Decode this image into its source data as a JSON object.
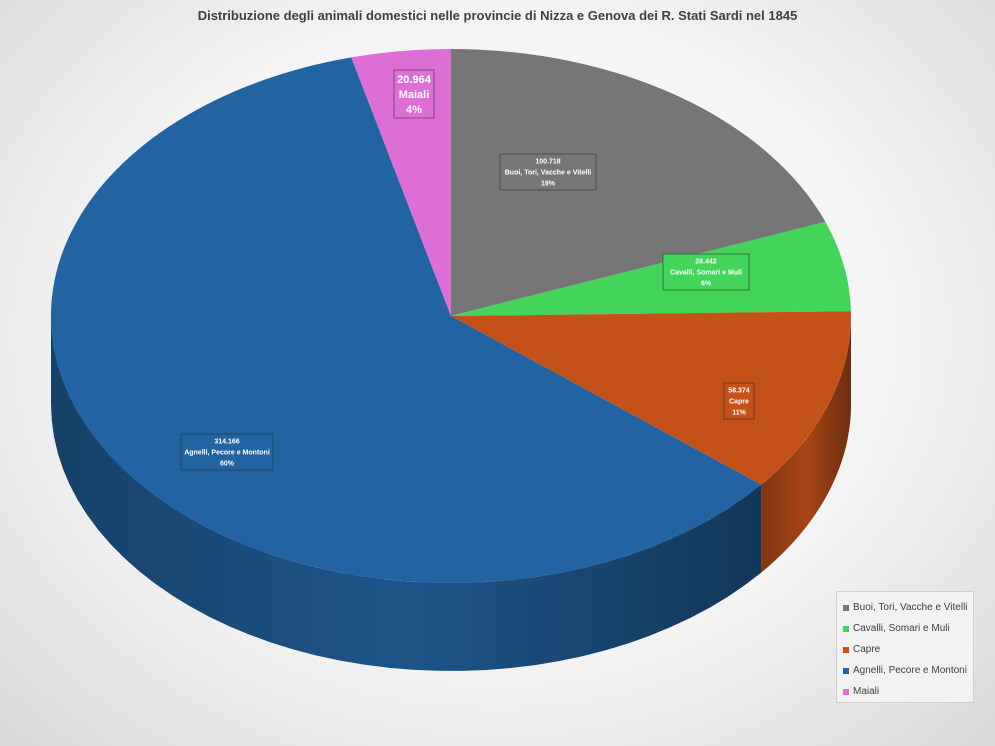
{
  "chart_data": {
    "type": "pie",
    "title": "Distribuzione degli animali domestici nelle provincie di Nizza e Genova dei R. Stati Sardi nel 1845",
    "legend_position": "bottom-right",
    "slices": [
      {
        "name": "Buoi, Tori, Vacche e Vitelli",
        "value": 100718,
        "value_label": "100.718",
        "pct_label": "19%",
        "color": "#767676"
      },
      {
        "name": "Cavalli, Somari e Muli",
        "value": 28442,
        "value_label": "28.442",
        "pct_label": "6%",
        "color": "#43d45a"
      },
      {
        "name": "Capre",
        "value": 58374,
        "value_label": "58.374",
        "pct_label": "11%",
        "color": "#c5511a"
      },
      {
        "name": "Agnelli, Pecore e Montoni",
        "value": 314166,
        "value_label": "314.166",
        "pct_label": "60%",
        "color": "#2264a1"
      },
      {
        "name": "Maiali",
        "value": 20964,
        "value_label": "20.964",
        "pct_label": "4%",
        "color": "#dd6ed5"
      }
    ]
  }
}
